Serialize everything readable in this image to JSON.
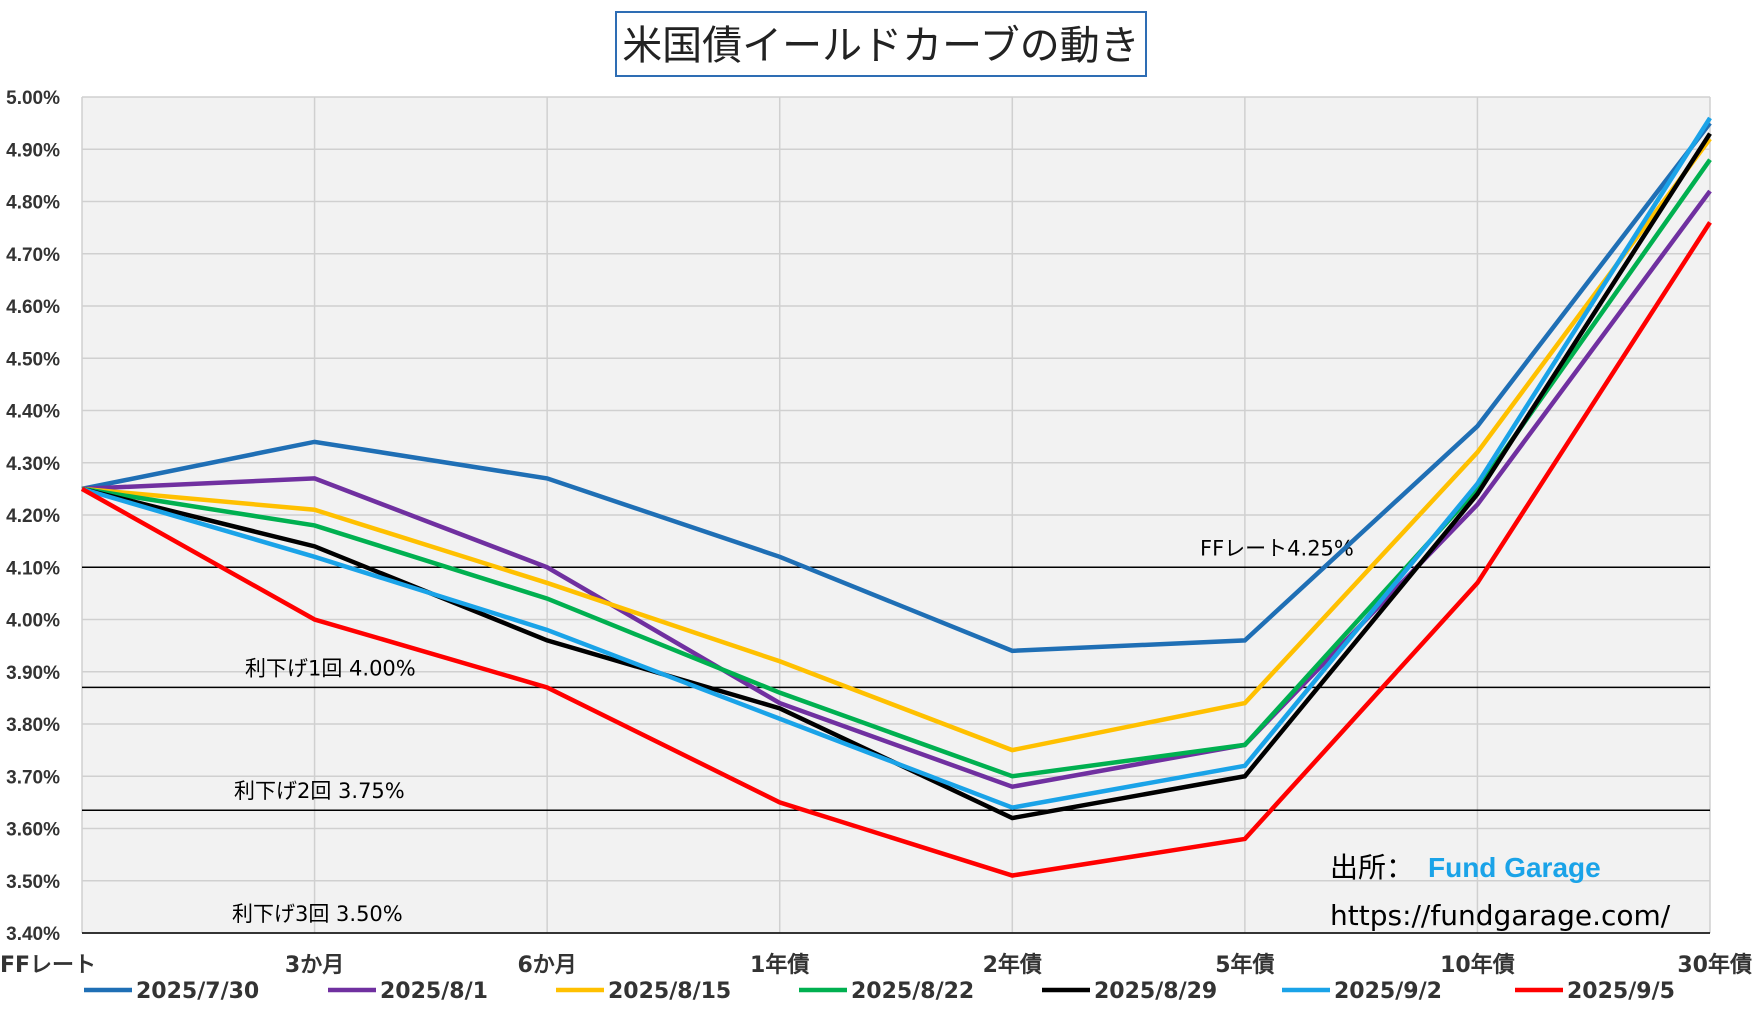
{
  "chart_data": {
    "type": "line",
    "title": "米国債イールドカーブの動き",
    "categories": [
      "FFレート",
      "3か月",
      "6か月",
      "1年債",
      "2年債",
      "5年債",
      "10年債",
      "30年債"
    ],
    "ylim": [
      3.4,
      5.0
    ],
    "yticks": [
      3.4,
      3.5,
      3.6,
      3.7,
      3.8,
      3.9,
      4.0,
      4.1,
      4.2,
      4.3,
      4.4,
      4.5,
      4.6,
      4.7,
      4.8,
      4.9,
      5.0
    ],
    "ytick_labels": [
      "3.40%",
      "3.50%",
      "3.60%",
      "3.70%",
      "3.80%",
      "3.90%",
      "4.00%",
      "4.10%",
      "4.20%",
      "4.30%",
      "4.40%",
      "4.50%",
      "4.60%",
      "4.70%",
      "4.80%",
      "4.90%",
      "5.00%"
    ],
    "grid": true,
    "legend_position": "bottom",
    "series": [
      {
        "name": "2025/7/30",
        "color": "#1f6fb5",
        "values": [
          4.25,
          4.34,
          4.27,
          4.12,
          3.94,
          3.96,
          4.37,
          4.95
        ]
      },
      {
        "name": "2025/8/1",
        "color": "#7030a0",
        "values": [
          4.25,
          4.27,
          4.1,
          3.84,
          3.68,
          3.76,
          4.22,
          4.82
        ]
      },
      {
        "name": "2025/8/15",
        "color": "#ffc000",
        "values": [
          4.25,
          4.21,
          4.07,
          3.92,
          3.75,
          3.84,
          4.32,
          4.92
        ]
      },
      {
        "name": "2025/8/22",
        "color": "#00b050",
        "values": [
          4.25,
          4.18,
          4.04,
          3.86,
          3.7,
          3.76,
          4.25,
          4.88
        ]
      },
      {
        "name": "2025/8/29",
        "color": "#000000",
        "values": [
          4.25,
          4.14,
          3.96,
          3.83,
          3.62,
          3.7,
          4.24,
          4.93
        ]
      },
      {
        "name": "2025/9/2",
        "color": "#1aa3e8",
        "values": [
          4.25,
          4.12,
          3.98,
          3.81,
          3.64,
          3.72,
          4.26,
          4.96
        ]
      },
      {
        "name": "2025/9/5",
        "color": "#ff0000",
        "values": [
          4.25,
          4.0,
          3.87,
          3.65,
          3.51,
          3.58,
          4.07,
          4.76
        ]
      }
    ],
    "reference_lines": [
      {
        "value": 4.1,
        "label": "FFレート4.25%"
      },
      {
        "value": 3.87,
        "label": "利下げ1回 4.00%"
      },
      {
        "value": 3.635,
        "label": "利下げ2回 3.75%"
      },
      {
        "value": 3.4,
        "label": "利下げ3回 3.50%"
      }
    ]
  },
  "source": {
    "label": "出所：",
    "name": "Fund Garage",
    "url": "https://fundgarage.com/"
  }
}
